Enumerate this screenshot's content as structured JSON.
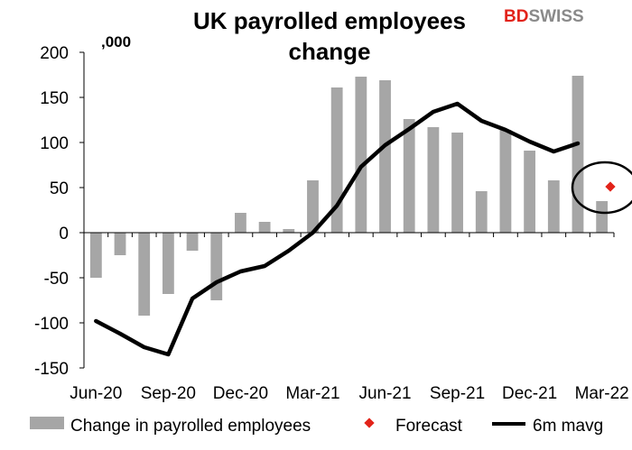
{
  "brand": {
    "part1": "BD",
    "part2": "SWISS",
    "accent": "#e2231a"
  },
  "chart_data": {
    "type": "bar",
    "title_line1": "UK payrolled employees",
    "title_line2": "change",
    "unit_label": ",000",
    "ylim": [
      -150,
      200
    ],
    "yticks": [
      -150,
      -100,
      -50,
      0,
      50,
      100,
      150,
      200
    ],
    "categories": [
      "Jun-20",
      "Jul-20",
      "Aug-20",
      "Sep-20",
      "Oct-20",
      "Nov-20",
      "Dec-20",
      "Jan-21",
      "Feb-21",
      "Mar-21",
      "Apr-21",
      "May-21",
      "Jun-21",
      "Jul-21",
      "Aug-21",
      "Sep-21",
      "Oct-21",
      "Nov-21",
      "Dec-21",
      "Jan-22",
      "Feb-22",
      "Mar-22"
    ],
    "xtick_labels": [
      {
        "index": 0,
        "label": "Jun-20"
      },
      {
        "index": 3,
        "label": "Sep-20"
      },
      {
        "index": 6,
        "label": "Dec-20"
      },
      {
        "index": 9,
        "label": "Mar-21"
      },
      {
        "index": 12,
        "label": "Jun-21"
      },
      {
        "index": 15,
        "label": "Sep-21"
      },
      {
        "index": 18,
        "label": "Dec-21"
      },
      {
        "index": 21,
        "label": "Mar-22"
      }
    ],
    "series": [
      {
        "name": "Change in payrolled employees",
        "kind": "bar",
        "color": "#a6a6a6",
        "values": [
          -50,
          -25,
          -92,
          -68,
          -20,
          -75,
          22,
          12,
          4,
          58,
          161,
          173,
          169,
          126,
          117,
          111,
          46,
          114,
          91,
          58,
          174,
          35
        ]
      },
      {
        "name": "Forecast",
        "kind": "point",
        "color": "#e2231a",
        "points": [
          {
            "index": 21,
            "value": 51
          }
        ]
      },
      {
        "name": "6m mavg",
        "kind": "line",
        "color": "#000000",
        "values": [
          -98,
          -112,
          -127,
          -135,
          -73,
          -55,
          -43,
          -37,
          -20,
          0,
          30,
          73,
          97,
          115,
          134,
          143,
          124,
          114,
          101,
          90,
          99,
          null
        ]
      }
    ],
    "annotation": {
      "type": "ellipse-highlight",
      "around": "Forecast",
      "color": "#000000"
    }
  }
}
